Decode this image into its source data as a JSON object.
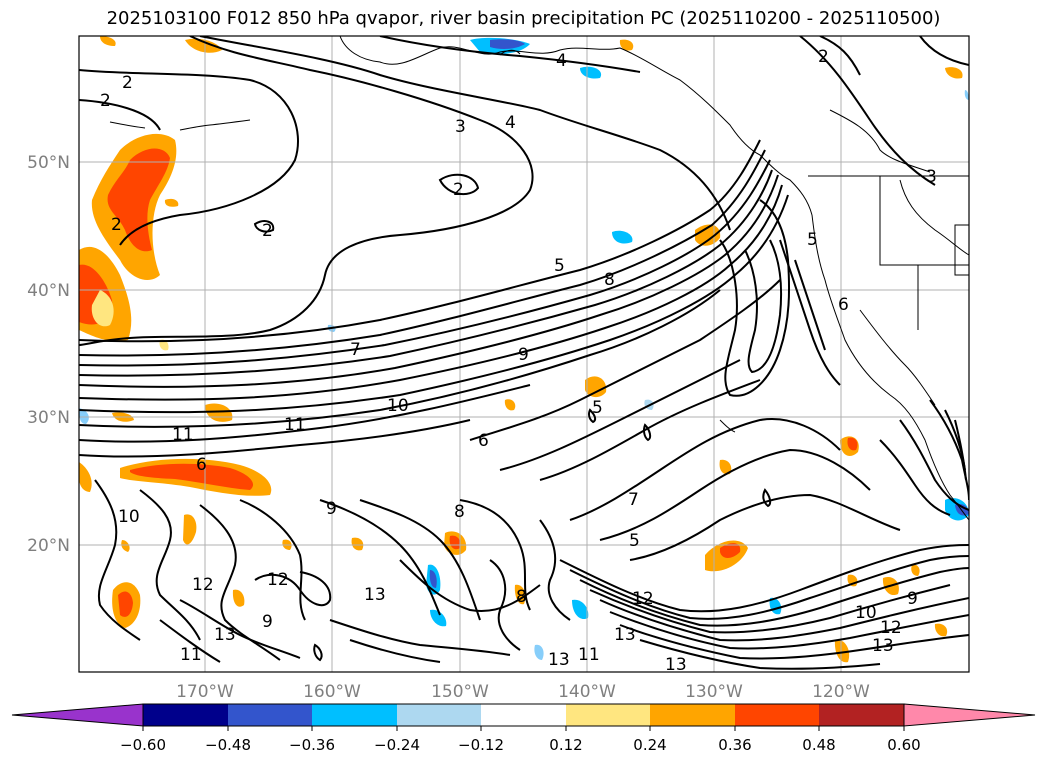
{
  "title": "2025103100 F012 850 hPa qvapor, river basin precipitation PC (2025110200 - 2025110500)",
  "lat_labels": [
    "50°N",
    "40°N",
    "30°N",
    "20°N"
  ],
  "lon_labels": [
    "170°W",
    "160°W",
    "150°W",
    "140°W",
    "130°W",
    "120°W"
  ],
  "colorbar": {
    "colors": [
      "#9933cc",
      "#00008b",
      "#3355cc",
      "#00bfff",
      "#add8f0",
      "#ffffff",
      "#ffe680",
      "#ffa500",
      "#ff4500",
      "#b22222",
      "#ff88aa"
    ],
    "ticks": [
      "−0.60",
      "−0.48",
      "−0.36",
      "−0.24",
      "−0.12",
      "0.12",
      "0.24",
      "0.36",
      "0.48",
      "0.60"
    ]
  },
  "contour_labels": [
    "2",
    "2",
    "2",
    "2",
    "2",
    "2",
    "3",
    "3",
    "4",
    "4",
    "5",
    "5",
    "5",
    "5",
    "6",
    "6",
    "6",
    "7",
    "7",
    "8",
    "8",
    "8",
    "9",
    "9",
    "9",
    "9",
    "10",
    "10",
    "10",
    "11",
    "11",
    "11",
    "11",
    "12",
    "12",
    "12",
    "12",
    "13",
    "13",
    "13",
    "13",
    "13",
    "13"
  ]
}
